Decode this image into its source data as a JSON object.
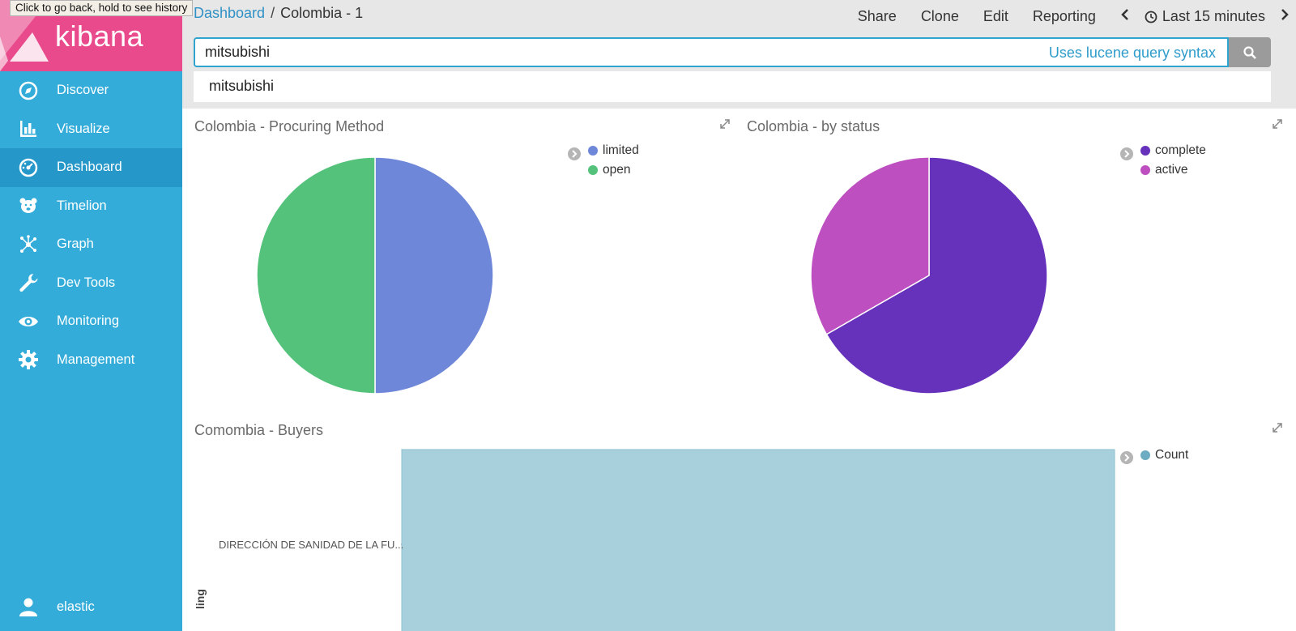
{
  "tooltip": "Click to go back, hold to see history",
  "app": {
    "name": "kibana"
  },
  "sidebar": {
    "items": [
      {
        "label": "Discover",
        "icon": "compass-icon"
      },
      {
        "label": "Visualize",
        "icon": "bar-chart-icon"
      },
      {
        "label": "Dashboard",
        "icon": "dashboard-gauge-icon",
        "active": true
      },
      {
        "label": "Timelion",
        "icon": "bear-icon"
      },
      {
        "label": "Graph",
        "icon": "graph-network-icon"
      },
      {
        "label": "Dev Tools",
        "icon": "wrench-icon"
      },
      {
        "label": "Monitoring",
        "icon": "eye-icon"
      },
      {
        "label": "Management",
        "icon": "gear-icon"
      }
    ],
    "user": {
      "label": "elastic",
      "icon": "user-icon"
    }
  },
  "breadcrumb": {
    "parent": "Dashboard",
    "separator": "/",
    "current": "Colombia - 1"
  },
  "toolbar": {
    "share": "Share",
    "clone": "Clone",
    "edit": "Edit",
    "reporting": "Reporting",
    "time_range": "Last 15 minutes"
  },
  "search": {
    "value": "mitsubishi",
    "syntax_link": "Uses lucene query syntax",
    "suggestion": "mitsubishi"
  },
  "colors": {
    "sidebar": "#34acd9",
    "logo": "#e94a8b",
    "accent": "#2ea4cf"
  },
  "chart_data": [
    {
      "type": "pie",
      "title": "Colombia - Procuring Method",
      "categories": [
        "limited",
        "open"
      ],
      "values": [
        50,
        50
      ],
      "colors": [
        "#6f87d8",
        "#54c27a"
      ],
      "legend": "top-right"
    },
    {
      "type": "pie",
      "title": "Colombia - by status",
      "categories": [
        "complete",
        "active"
      ],
      "values": [
        66.7,
        33.3
      ],
      "colors": [
        "#6732bb",
        "#bd4fc0"
      ],
      "legend": "top-right"
    },
    {
      "type": "bar",
      "title": "Comombia - Buyers",
      "categories": [
        "DIRECCIÓN DE SANIDAD DE LA FU..."
      ],
      "series": [
        {
          "name": "Count",
          "values": [
            1
          ],
          "color": "#a7cfdc"
        }
      ],
      "ylabel": "ling",
      "legend": "top-right"
    }
  ]
}
